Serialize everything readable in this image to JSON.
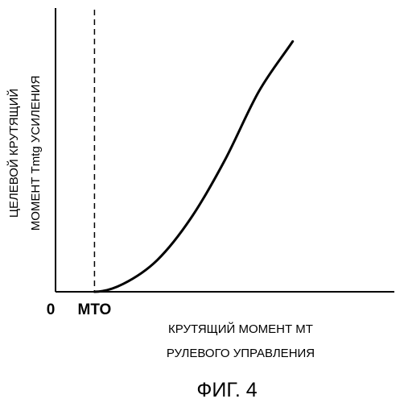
{
  "chart_data": {
    "type": "line",
    "title": "",
    "xlabel": "КРУТЯЩИЙ МОМЕНТ МТ РУЛЕВОГО УПРАВЛЕНИЯ",
    "xlabel_lines": [
      "КРУТЯЩИЙ МОМЕНТ МТ",
      "РУЛЕВОГО УПРАВЛЕНИЯ"
    ],
    "ylabel": "ЦЕЛЕВОЙ КРУТЯЩИЙ МОМЕНТ Tmtg УСИЛЕНИЯ",
    "ylabel_lines": [
      "ЦЕЛЕВОЙ КРУТЯЩИЙ",
      "МОМЕНТ Tmtg УСИЛЕНИЯ"
    ],
    "x_ticks": [
      {
        "value": 0,
        "label": "0"
      },
      {
        "value": 0.115,
        "label": "МТО"
      }
    ],
    "xlim": [
      0,
      1
    ],
    "ylim": [
      0,
      1
    ],
    "threshold": {
      "x": 0.115,
      "label": "МТО",
      "style": "dashed"
    },
    "series": [
      {
        "x": [
          0.115,
          0.2,
          0.3,
          0.4,
          0.5,
          0.6,
          0.7
        ],
        "y": [
          0.0,
          0.03,
          0.12,
          0.28,
          0.5,
          0.76,
          0.95
        ]
      }
    ],
    "line_color": "#000000",
    "grid": false
  },
  "caption": "ФИГ. 4"
}
